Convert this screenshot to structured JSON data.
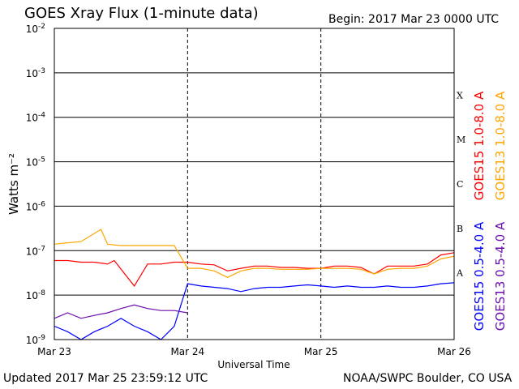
{
  "header": {
    "title": "GOES Xray Flux (1-minute data)",
    "begin": "Begin:  2017 Mar 23 0000 UTC"
  },
  "footer": {
    "updated": "Updated 2017 Mar 25 23:59:12 UTC",
    "credit": "NOAA/SWPC Boulder, CO USA"
  },
  "chart_data": {
    "type": "line",
    "title": "GOES Xray Flux (1-minute data)",
    "xlabel": "Universal Time",
    "ylabel": "Watts m⁻²",
    "yscale": "log",
    "ylim": [
      1e-09,
      0.01
    ],
    "x_ticks": [
      "Mar 23",
      "Mar 24",
      "Mar 25",
      "Mar 26"
    ],
    "y_ticks": [
      {
        "base": "10",
        "exp": "-9",
        "value": 1e-09
      },
      {
        "base": "10",
        "exp": "-8",
        "value": 1e-08
      },
      {
        "base": "10",
        "exp": "-7",
        "value": 1e-07
      },
      {
        "base": "10",
        "exp": "-6",
        "value": 1e-06
      },
      {
        "base": "10",
        "exp": "-5",
        "value": 1e-05
      },
      {
        "base": "10",
        "exp": "-4",
        "value": 0.0001
      },
      {
        "base": "10",
        "exp": "-3",
        "value": 0.001
      },
      {
        "base": "10",
        "exp": "-2",
        "value": 0.01
      }
    ],
    "flare_classes": [
      {
        "label": "A",
        "value": 1e-08
      },
      {
        "label": "B",
        "value": 1e-07
      },
      {
        "label": "C",
        "value": 1e-06
      },
      {
        "label": "M",
        "value": 1e-05
      },
      {
        "label": "X",
        "value": 0.0001
      }
    ],
    "grid": true,
    "legend_placement": "right",
    "series": [
      {
        "name": "GOES15 1.0-8.0 A",
        "color": "#ff0000",
        "x": [
          0.0,
          0.1,
          0.2,
          0.3,
          0.4,
          0.45,
          0.6,
          0.7,
          0.8,
          0.9,
          1.0,
          1.1,
          1.2,
          1.3,
          1.4,
          1.5,
          1.6,
          1.7,
          1.8,
          1.9,
          2.0,
          2.1,
          2.2,
          2.3,
          2.4,
          2.5,
          2.6,
          2.7,
          2.8,
          2.9,
          3.0
        ],
        "y": [
          6e-08,
          6e-08,
          5.5e-08,
          5.5e-08,
          5e-08,
          6e-08,
          1.6e-08,
          5e-08,
          5e-08,
          5.5e-08,
          5.5e-08,
          5e-08,
          4.8e-08,
          3.5e-08,
          4e-08,
          4.5e-08,
          4.5e-08,
          4.2e-08,
          4.2e-08,
          4e-08,
          4e-08,
          4.5e-08,
          4.5e-08,
          4.2e-08,
          3e-08,
          4.5e-08,
          4.5e-08,
          4.5e-08,
          5e-08,
          8e-08,
          9e-08
        ]
      },
      {
        "name": "GOES13 1.0-8.0 A",
        "color": "#ffa500",
        "x": [
          0.0,
          0.1,
          0.2,
          0.35,
          0.4,
          0.5,
          0.6,
          0.7,
          0.8,
          0.9,
          1.0,
          1.1,
          1.2,
          1.3,
          1.4,
          1.5,
          1.6,
          1.7,
          1.8,
          1.9,
          2.0,
          2.1,
          2.2,
          2.3,
          2.4,
          2.5,
          2.6,
          2.7,
          2.8,
          2.9,
          3.0
        ],
        "y": [
          1.4e-07,
          1.5e-07,
          1.6e-07,
          3e-07,
          1.4e-07,
          1.3e-07,
          1.3e-07,
          1.3e-07,
          1.3e-07,
          1.3e-07,
          4e-08,
          4e-08,
          3.5e-08,
          2.5e-08,
          3.5e-08,
          4e-08,
          4e-08,
          3.8e-08,
          3.8e-08,
          3.8e-08,
          4e-08,
          4e-08,
          4e-08,
          3.8e-08,
          3e-08,
          3.8e-08,
          4e-08,
          4e-08,
          4.5e-08,
          6.5e-08,
          7.5e-08
        ]
      },
      {
        "name": "GOES15 0.5-4.0 A",
        "color": "#0000ff",
        "x": [
          0.0,
          0.1,
          0.2,
          0.3,
          0.4,
          0.5,
          0.6,
          0.7,
          0.8,
          0.9,
          1.0,
          1.1,
          1.2,
          1.3,
          1.4,
          1.5,
          1.6,
          1.7,
          1.8,
          1.9,
          2.0,
          2.1,
          2.2,
          2.3,
          2.4,
          2.5,
          2.6,
          2.7,
          2.8,
          2.9,
          3.0
        ],
        "y": [
          2e-09,
          1.5e-09,
          1e-09,
          1.5e-09,
          2e-09,
          3e-09,
          2e-09,
          1.5e-09,
          1e-09,
          2e-09,
          1.8e-08,
          1.6e-08,
          1.5e-08,
          1.4e-08,
          1.2e-08,
          1.4e-08,
          1.5e-08,
          1.5e-08,
          1.6e-08,
          1.7e-08,
          1.6e-08,
          1.5e-08,
          1.6e-08,
          1.5e-08,
          1.5e-08,
          1.6e-08,
          1.5e-08,
          1.5e-08,
          1.6e-08,
          1.8e-08,
          1.9e-08
        ]
      },
      {
        "name": "GOES13 0.5-4.0 A",
        "color": "#6a0dad",
        "x": [
          0.0,
          0.1,
          0.2,
          0.3,
          0.4,
          0.5,
          0.6,
          0.7,
          0.8,
          0.9,
          1.0
        ],
        "y": [
          3e-09,
          4e-09,
          3e-09,
          3.5e-09,
          4e-09,
          5e-09,
          6e-09,
          5e-09,
          4.5e-09,
          4.5e-09,
          4e-09
        ]
      }
    ]
  }
}
